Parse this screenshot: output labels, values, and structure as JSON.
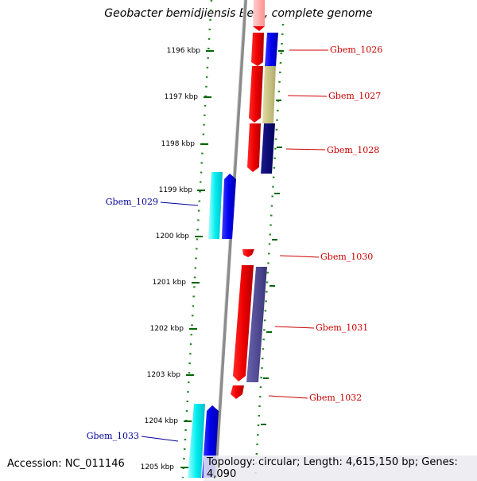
{
  "title": "Geobacter bemidjiensis Bem, complete genome",
  "footer": {
    "accession": "Accession: NC_011146",
    "topology": "Topology: circular; Length: 4,615,150 bp; Genes: 4,090"
  },
  "axis": {
    "unit": "kbp",
    "ticks": [
      "1196 kbp",
      "1197 kbp",
      "1198 kbp",
      "1199 kbp",
      "1200 kbp",
      "1201 kbp",
      "1202 kbp",
      "1203 kbp",
      "1204 kbp",
      "1205 kbp"
    ]
  },
  "genes": [
    {
      "label": "Gbem_1026",
      "color": "#cc0000"
    },
    {
      "label": "Gbem_1027",
      "color": "#cc0000"
    },
    {
      "label": "Gbem_1028",
      "color": "#cc0000"
    },
    {
      "label": "Gbem_1029",
      "color": "#000099"
    },
    {
      "label": "Gbem_1030",
      "color": "#cc0000"
    },
    {
      "label": "Gbem_1031",
      "color": "#cc0000"
    },
    {
      "label": "Gbem_1032",
      "color": "#cc0000"
    },
    {
      "label": "Gbem_1033",
      "color": "#000099"
    }
  ]
}
